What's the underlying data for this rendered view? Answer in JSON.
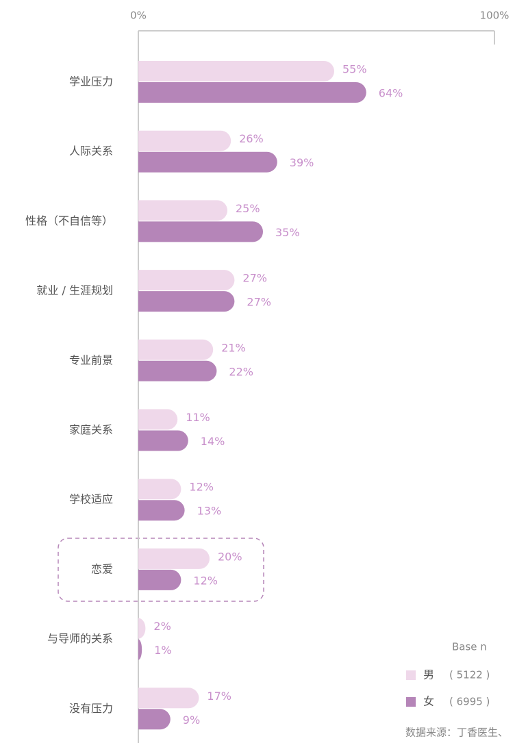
{
  "chart_data": {
    "type": "bar",
    "orientation": "horizontal",
    "categories": [
      "学业压力",
      "人际关系",
      "性格（不自信等）",
      "就业 / 生涯规划",
      "专业前景",
      "家庭关系",
      "学校适应",
      "恋爱",
      "与导师的关系",
      "没有压力"
    ],
    "series": [
      {
        "name": "男",
        "color": "#efd8ea",
        "values": [
          55,
          26,
          25,
          27,
          21,
          11,
          12,
          20,
          2,
          17
        ],
        "value_labels": [
          "55%",
          "26%",
          "25%",
          "27%",
          "21%",
          "11%",
          "12%",
          "20%",
          "2%",
          "17%"
        ]
      },
      {
        "name": "女",
        "color": "#b585b8",
        "values": [
          64,
          39,
          35,
          27,
          22,
          14,
          13,
          12,
          1,
          9
        ],
        "value_labels": [
          "64%",
          "39%",
          "35%",
          "27%",
          "22%",
          "14%",
          "13%",
          "12%",
          "1%",
          "9%"
        ]
      }
    ],
    "xlim": [
      0,
      100
    ],
    "xticks": [
      {
        "value": 0,
        "label": "0%"
      },
      {
        "value": 100,
        "label": "100%"
      }
    ],
    "legend": {
      "title": "Base n",
      "counts": [
        "( 5122 )",
        "( 6995 )"
      ]
    },
    "source": "数据来源：丁香医生、"
  }
}
